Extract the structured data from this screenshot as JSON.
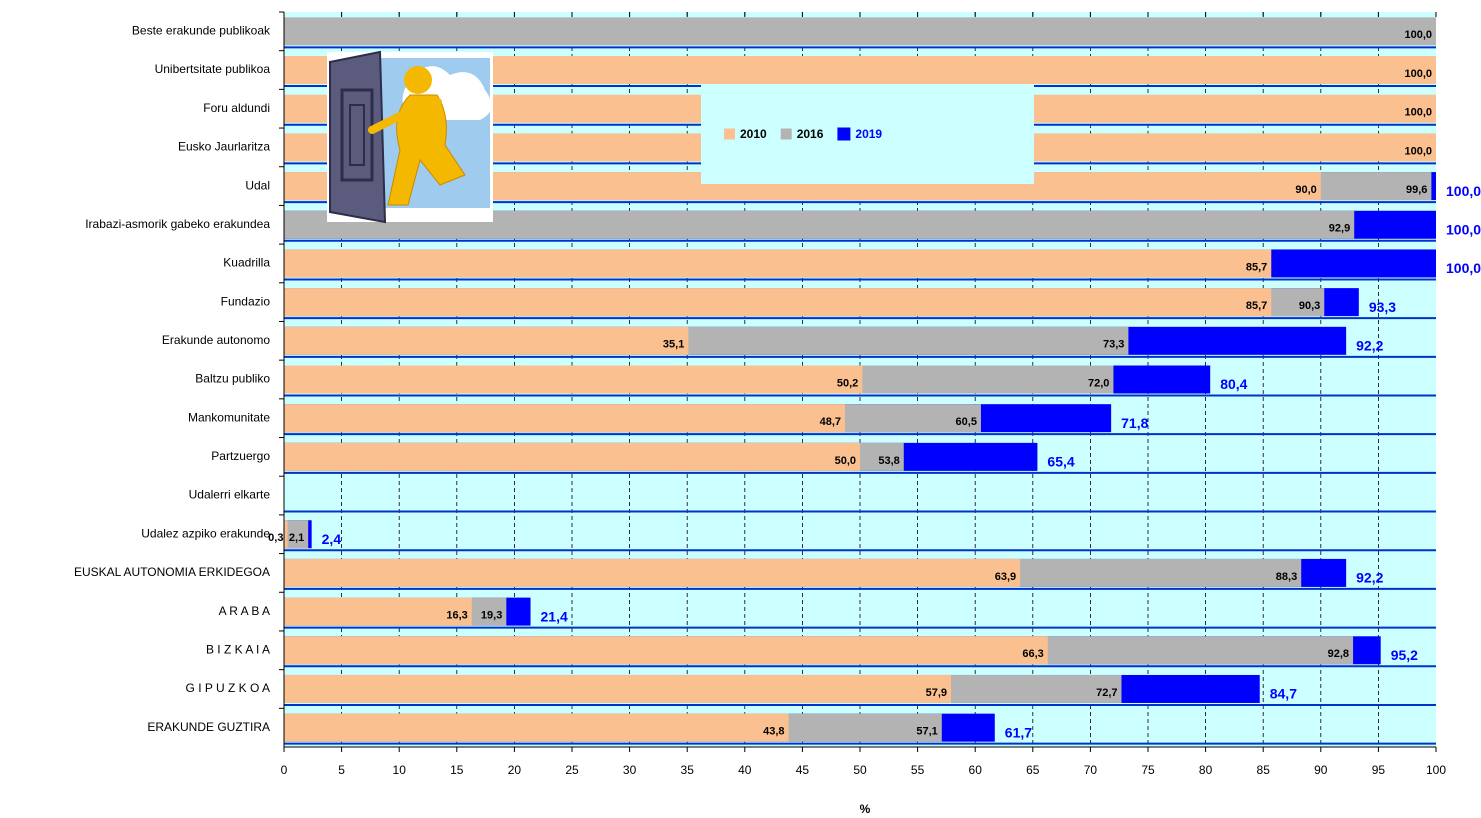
{
  "chart_data": {
    "type": "bar",
    "orientation": "horizontal",
    "overlap": true,
    "xlabel": "%",
    "categories": [
      "Beste erakunde publikoak",
      "Unibertsitate publikoa",
      "Foru aldundi",
      "Eusko Jaurlaritza",
      "Udal",
      "Irabazi-asmorik gabeko erakundea",
      "Kuadrilla",
      "Fundazio",
      "Erakunde autonomo",
      "Baltzu publiko",
      "Mankomunitate",
      "Partzuergo",
      "Udalerri elkarte",
      "Udalez azpiko erakunde",
      "EUSKAL AUTONOMIA ERKIDEGOA",
      "A R A B A",
      "B I Z K A I A",
      "G I P U Z K O A",
      "ERAKUNDE GUZTIRA"
    ],
    "series": [
      {
        "name": "2010",
        "color": "#fac090",
        "values": [
          null,
          100,
          100,
          100,
          90,
          null,
          85.7,
          85.7,
          35.1,
          50.2,
          48.7,
          50,
          null,
          0.3,
          63.9,
          16.3,
          66.3,
          57.9,
          43.8
        ],
        "value_labels": [
          null,
          "100,0",
          "100,0",
          "100,0",
          "90,0",
          null,
          "85,7",
          "85,7",
          "35,1",
          "50,2",
          "48,7",
          "50,0",
          null,
          "0,3",
          "63,9",
          "16,3",
          "66,3",
          "57,9",
          "43,8"
        ]
      },
      {
        "name": "2016",
        "color": "#b3b3b3",
        "values": [
          100,
          null,
          null,
          null,
          99.6,
          92.9,
          null,
          90.3,
          73.3,
          72,
          60.5,
          53.8,
          null,
          2.1,
          88.3,
          19.3,
          92.8,
          72.7,
          57.1
        ],
        "value_labels": [
          "100,0",
          null,
          null,
          null,
          "99,6",
          "92,9",
          null,
          "90,3",
          "73,3",
          "72,0",
          "60,5",
          "53,8",
          null,
          "2,1",
          "88,3",
          "19,3",
          "92,8",
          "72,7",
          "57,1"
        ]
      },
      {
        "name": "2019",
        "color": "#0000ff",
        "values": [
          null,
          null,
          null,
          null,
          100,
          100,
          100,
          93.3,
          92.2,
          80.4,
          71.8,
          65.4,
          null,
          2.4,
          92.2,
          21.4,
          95.2,
          84.7,
          61.7
        ],
        "value_labels": [
          null,
          null,
          null,
          null,
          "100,0",
          "100,0",
          "100,0",
          "93,3",
          "92,2",
          "80,4",
          "71,8",
          "65,4",
          null,
          "2,4",
          "92,2",
          "21,4",
          "95,2",
          "84,7",
          "61,7"
        ]
      }
    ],
    "xlim": [
      0,
      100
    ],
    "xticks": [
      0,
      5,
      10,
      15,
      20,
      25,
      30,
      35,
      40,
      45,
      50,
      55,
      60,
      65,
      70,
      75,
      80,
      85,
      90,
      95,
      100
    ],
    "grid": true,
    "background": "#ccffff"
  }
}
